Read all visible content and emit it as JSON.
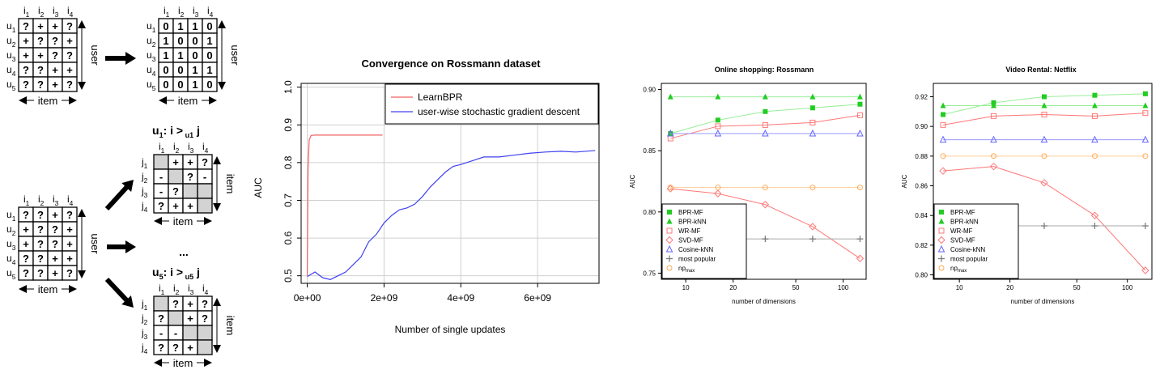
{
  "diagram": {
    "top_left": {
      "item_headers": [
        "i1",
        "i2",
        "i3",
        "i4"
      ],
      "user_headers": [
        "u1",
        "u2",
        "u3",
        "u4",
        "u5"
      ],
      "matrix": [
        [
          "?",
          "+",
          "+",
          "?"
        ],
        [
          "+",
          "?",
          "?",
          "+"
        ],
        [
          "+",
          "+",
          "?",
          "?"
        ],
        [
          "?",
          "?",
          "+",
          "+"
        ],
        [
          "?",
          "?",
          "+",
          "?"
        ]
      ],
      "user_label": "user",
      "item_label": "item"
    },
    "top_right": {
      "item_headers": [
        "i1",
        "i2",
        "i3",
        "i4"
      ],
      "user_headers": [
        "u1",
        "u2",
        "u3",
        "u4",
        "u5"
      ],
      "matrix": [
        [
          "0",
          "1",
          "1",
          "0"
        ],
        [
          "1",
          "0",
          "0",
          "1"
        ],
        [
          "1",
          "1",
          "0",
          "0"
        ],
        [
          "0",
          "0",
          "1",
          "1"
        ],
        [
          "0",
          "0",
          "1",
          "0"
        ]
      ],
      "user_label": "user",
      "item_label": "item"
    },
    "bottom_left": {
      "item_headers": [
        "i1",
        "i2",
        "i3",
        "i4"
      ],
      "user_headers": [
        "u1",
        "u2",
        "u3",
        "u4",
        "u5"
      ],
      "matrix": [
        [
          "?",
          "?",
          "+",
          "?"
        ],
        [
          "+",
          "?",
          "?",
          "+"
        ],
        [
          "+",
          "?",
          "?",
          "+"
        ],
        [
          "?",
          "?",
          "+",
          "+"
        ],
        [
          "?",
          "?",
          "+",
          "?"
        ]
      ],
      "user_label": "user",
      "item_label": "item"
    },
    "u1_block": {
      "title": "u1:  i >u1 j",
      "item_headers": [
        "i1",
        "i2",
        "i3",
        "i4"
      ],
      "row_headers": [
        "j1",
        "j2",
        "j3",
        "j4"
      ],
      "matrix": [
        [
          "",
          "+",
          "+",
          "?"
        ],
        [
          "-",
          "",
          "?",
          "-"
        ],
        [
          "-",
          "?",
          "",
          ""
        ],
        [
          "?",
          "+",
          "+",
          ""
        ]
      ],
      "shaded": [
        [
          1,
          0,
          0,
          0
        ],
        [
          0,
          1,
          0,
          0
        ],
        [
          0,
          0,
          1,
          1
        ],
        [
          0,
          0,
          0,
          1
        ]
      ],
      "item_label": "item",
      "side_label": "item"
    },
    "ellipsis": "...",
    "u5_block": {
      "title": "u5:  i >u5 j",
      "item_headers": [
        "i1",
        "i2",
        "i3",
        "i4"
      ],
      "row_headers": [
        "j1",
        "j2",
        "j3",
        "j4"
      ],
      "matrix": [
        [
          "",
          "?",
          "+",
          "?"
        ],
        [
          "?",
          "",
          "+",
          "?"
        ],
        [
          "-",
          "-",
          "",
          ""
        ],
        [
          "?",
          "?",
          "+",
          ""
        ]
      ],
      "shaded": [
        [
          1,
          0,
          0,
          0
        ],
        [
          0,
          1,
          0,
          0
        ],
        [
          0,
          0,
          1,
          1
        ],
        [
          0,
          0,
          0,
          1
        ]
      ],
      "item_label": "item",
      "side_label": "item"
    }
  },
  "colors": {
    "red": "#f06060",
    "blue": "#4040f0",
    "green": "#22cc22",
    "salmon": "#ff7777",
    "lblue": "#6666ff",
    "gray": "#777777",
    "orange": "#ffaa55",
    "shade": "#d3d3d3"
  },
  "chart_data": [
    {
      "type": "line",
      "title": "Convergence on Rossmann dataset",
      "xlabel": "Number of single updates",
      "ylabel": "AUC",
      "xlim": [
        -160000000.0,
        7600000000.0
      ],
      "ylim": [
        0.48,
        1.01
      ],
      "xticks": [
        0,
        2000000000.0,
        4000000000.0,
        6000000000.0
      ],
      "xtick_labels": [
        "0e+00",
        "2e+09",
        "4e+09",
        "6e+09"
      ],
      "yticks": [
        0.5,
        0.6,
        0.7,
        0.8,
        0.9,
        1.0
      ],
      "ytick_labels": [
        "0.5",
        "0.6",
        "0.7",
        "0.8",
        "0.9",
        "1.0"
      ],
      "grid": true,
      "legend_position": "top-right",
      "series": [
        {
          "name": "LearnBPR",
          "color": "#f06060",
          "x": [
            0,
            20000000.0,
            50000000.0,
            100000000.0,
            200000000.0,
            500000000.0,
            1000000000.0,
            1500000000.0,
            1960000000.0
          ],
          "y": [
            0.5,
            0.78,
            0.86,
            0.872,
            0.873,
            0.873,
            0.873,
            0.873,
            0.873
          ]
        },
        {
          "name": "user-wise stochastic gradient descent",
          "color": "#4040f0",
          "x": [
            0,
            200000000.0,
            400000000.0,
            600000000.0,
            800000000.0,
            1000000000.0,
            1200000000.0,
            1400000000.0,
            1600000000.0,
            1800000000.0,
            2000000000.0,
            2200000000.0,
            2400000000.0,
            2600000000.0,
            2800000000.0,
            3000000000.0,
            3200000000.0,
            3400000000.0,
            3600000000.0,
            3800000000.0,
            4000000000.0,
            4300000000.0,
            4600000000.0,
            5000000000.0,
            5400000000.0,
            5800000000.0,
            6200000000.0,
            6600000000.0,
            7000000000.0,
            7500000000.0
          ],
          "y": [
            0.498,
            0.51,
            0.495,
            0.49,
            0.5,
            0.51,
            0.53,
            0.55,
            0.59,
            0.61,
            0.64,
            0.66,
            0.675,
            0.68,
            0.69,
            0.71,
            0.735,
            0.755,
            0.775,
            0.79,
            0.795,
            0.805,
            0.815,
            0.815,
            0.82,
            0.825,
            0.828,
            0.83,
            0.828,
            0.832
          ]
        }
      ]
    },
    {
      "type": "line",
      "title": "Online shopping: Rossmann",
      "xlabel": "number of dimensions",
      "ylabel": "AUC",
      "xscale": "log",
      "xlim": [
        7,
        140
      ],
      "ylim": [
        0.745,
        0.905
      ],
      "xticks": [
        10,
        20,
        50,
        100
      ],
      "xtick_labels": [
        "10",
        "20",
        "50",
        "100"
      ],
      "yticks": [
        0.75,
        0.8,
        0.85,
        0.9
      ],
      "ytick_labels": [
        "0.75",
        "0.80",
        "0.85",
        "0.90"
      ],
      "x": [
        8,
        16,
        32,
        64,
        128
      ],
      "legend_position": "bottom-left",
      "series": [
        {
          "name": "BPR-MF",
          "marker": "square",
          "color": "#22cc22",
          "values": [
            0.864,
            0.875,
            0.882,
            0.885,
            0.888
          ]
        },
        {
          "name": "BPR-kNN",
          "marker": "triangle",
          "color": "#22cc22",
          "values": [
            0.894,
            0.894,
            0.894,
            0.894,
            0.894
          ]
        },
        {
          "name": "WR-MF",
          "marker": "open-square",
          "color": "#ff7777",
          "values": [
            0.86,
            0.87,
            0.871,
            0.873,
            0.879
          ]
        },
        {
          "name": "SVD-MF",
          "marker": "open-diamond",
          "color": "#ff7777",
          "values": [
            0.819,
            0.815,
            0.806,
            0.788,
            0.762
          ]
        },
        {
          "name": "Cosine-kNN",
          "marker": "open-triangle",
          "color": "#6666ff",
          "values": [
            0.864,
            0.864,
            0.864,
            0.864,
            0.864
          ]
        },
        {
          "name": "most popular",
          "marker": "plus",
          "color": "#777777",
          "values": [
            0.778,
            0.778,
            0.778,
            0.778,
            0.778
          ]
        },
        {
          "name": "np",
          "subscript": "max",
          "marker": "open-circle",
          "color": "#ffaa55",
          "values": [
            0.82,
            0.82,
            0.82,
            0.82,
            0.82
          ]
        }
      ]
    },
    {
      "type": "line",
      "title": "Video Rental: Netflix",
      "xlabel": "number of dimensions",
      "ylabel": "AUC",
      "xscale": "log",
      "xlim": [
        7,
        140
      ],
      "ylim": [
        0.797,
        0.929
      ],
      "xticks": [
        10,
        20,
        50,
        100
      ],
      "xtick_labels": [
        "10",
        "20",
        "50",
        "100"
      ],
      "yticks": [
        0.8,
        0.82,
        0.84,
        0.86,
        0.88,
        0.9,
        0.92
      ],
      "ytick_labels": [
        "0.80",
        "0.82",
        "0.84",
        "0.86",
        "0.88",
        "0.90",
        "0.92"
      ],
      "x": [
        8,
        16,
        32,
        64,
        128
      ],
      "legend_position": "bottom-left",
      "series": [
        {
          "name": "BPR-MF",
          "marker": "square",
          "color": "#22cc22",
          "values": [
            0.908,
            0.916,
            0.92,
            0.921,
            0.922
          ]
        },
        {
          "name": "BPR-kNN",
          "marker": "triangle",
          "color": "#22cc22",
          "values": [
            0.914,
            0.914,
            0.914,
            0.914,
            0.914
          ]
        },
        {
          "name": "WR-MF",
          "marker": "open-square",
          "color": "#ff7777",
          "values": [
            0.901,
            0.907,
            0.908,
            0.907,
            0.909
          ]
        },
        {
          "name": "SVD-MF",
          "marker": "open-diamond",
          "color": "#ff7777",
          "values": [
            0.87,
            0.873,
            0.862,
            0.84,
            0.803
          ]
        },
        {
          "name": "Cosine-kNN",
          "marker": "open-triangle",
          "color": "#6666ff",
          "values": [
            0.891,
            0.891,
            0.891,
            0.891,
            0.891
          ]
        },
        {
          "name": "most popular",
          "marker": "plus",
          "color": "#777777",
          "values": [
            0.833,
            0.833,
            0.833,
            0.833,
            0.833
          ]
        },
        {
          "name": "np",
          "subscript": "max",
          "marker": "open-circle",
          "color": "#ffaa55",
          "values": [
            0.88,
            0.88,
            0.88,
            0.88,
            0.88
          ]
        }
      ]
    }
  ]
}
